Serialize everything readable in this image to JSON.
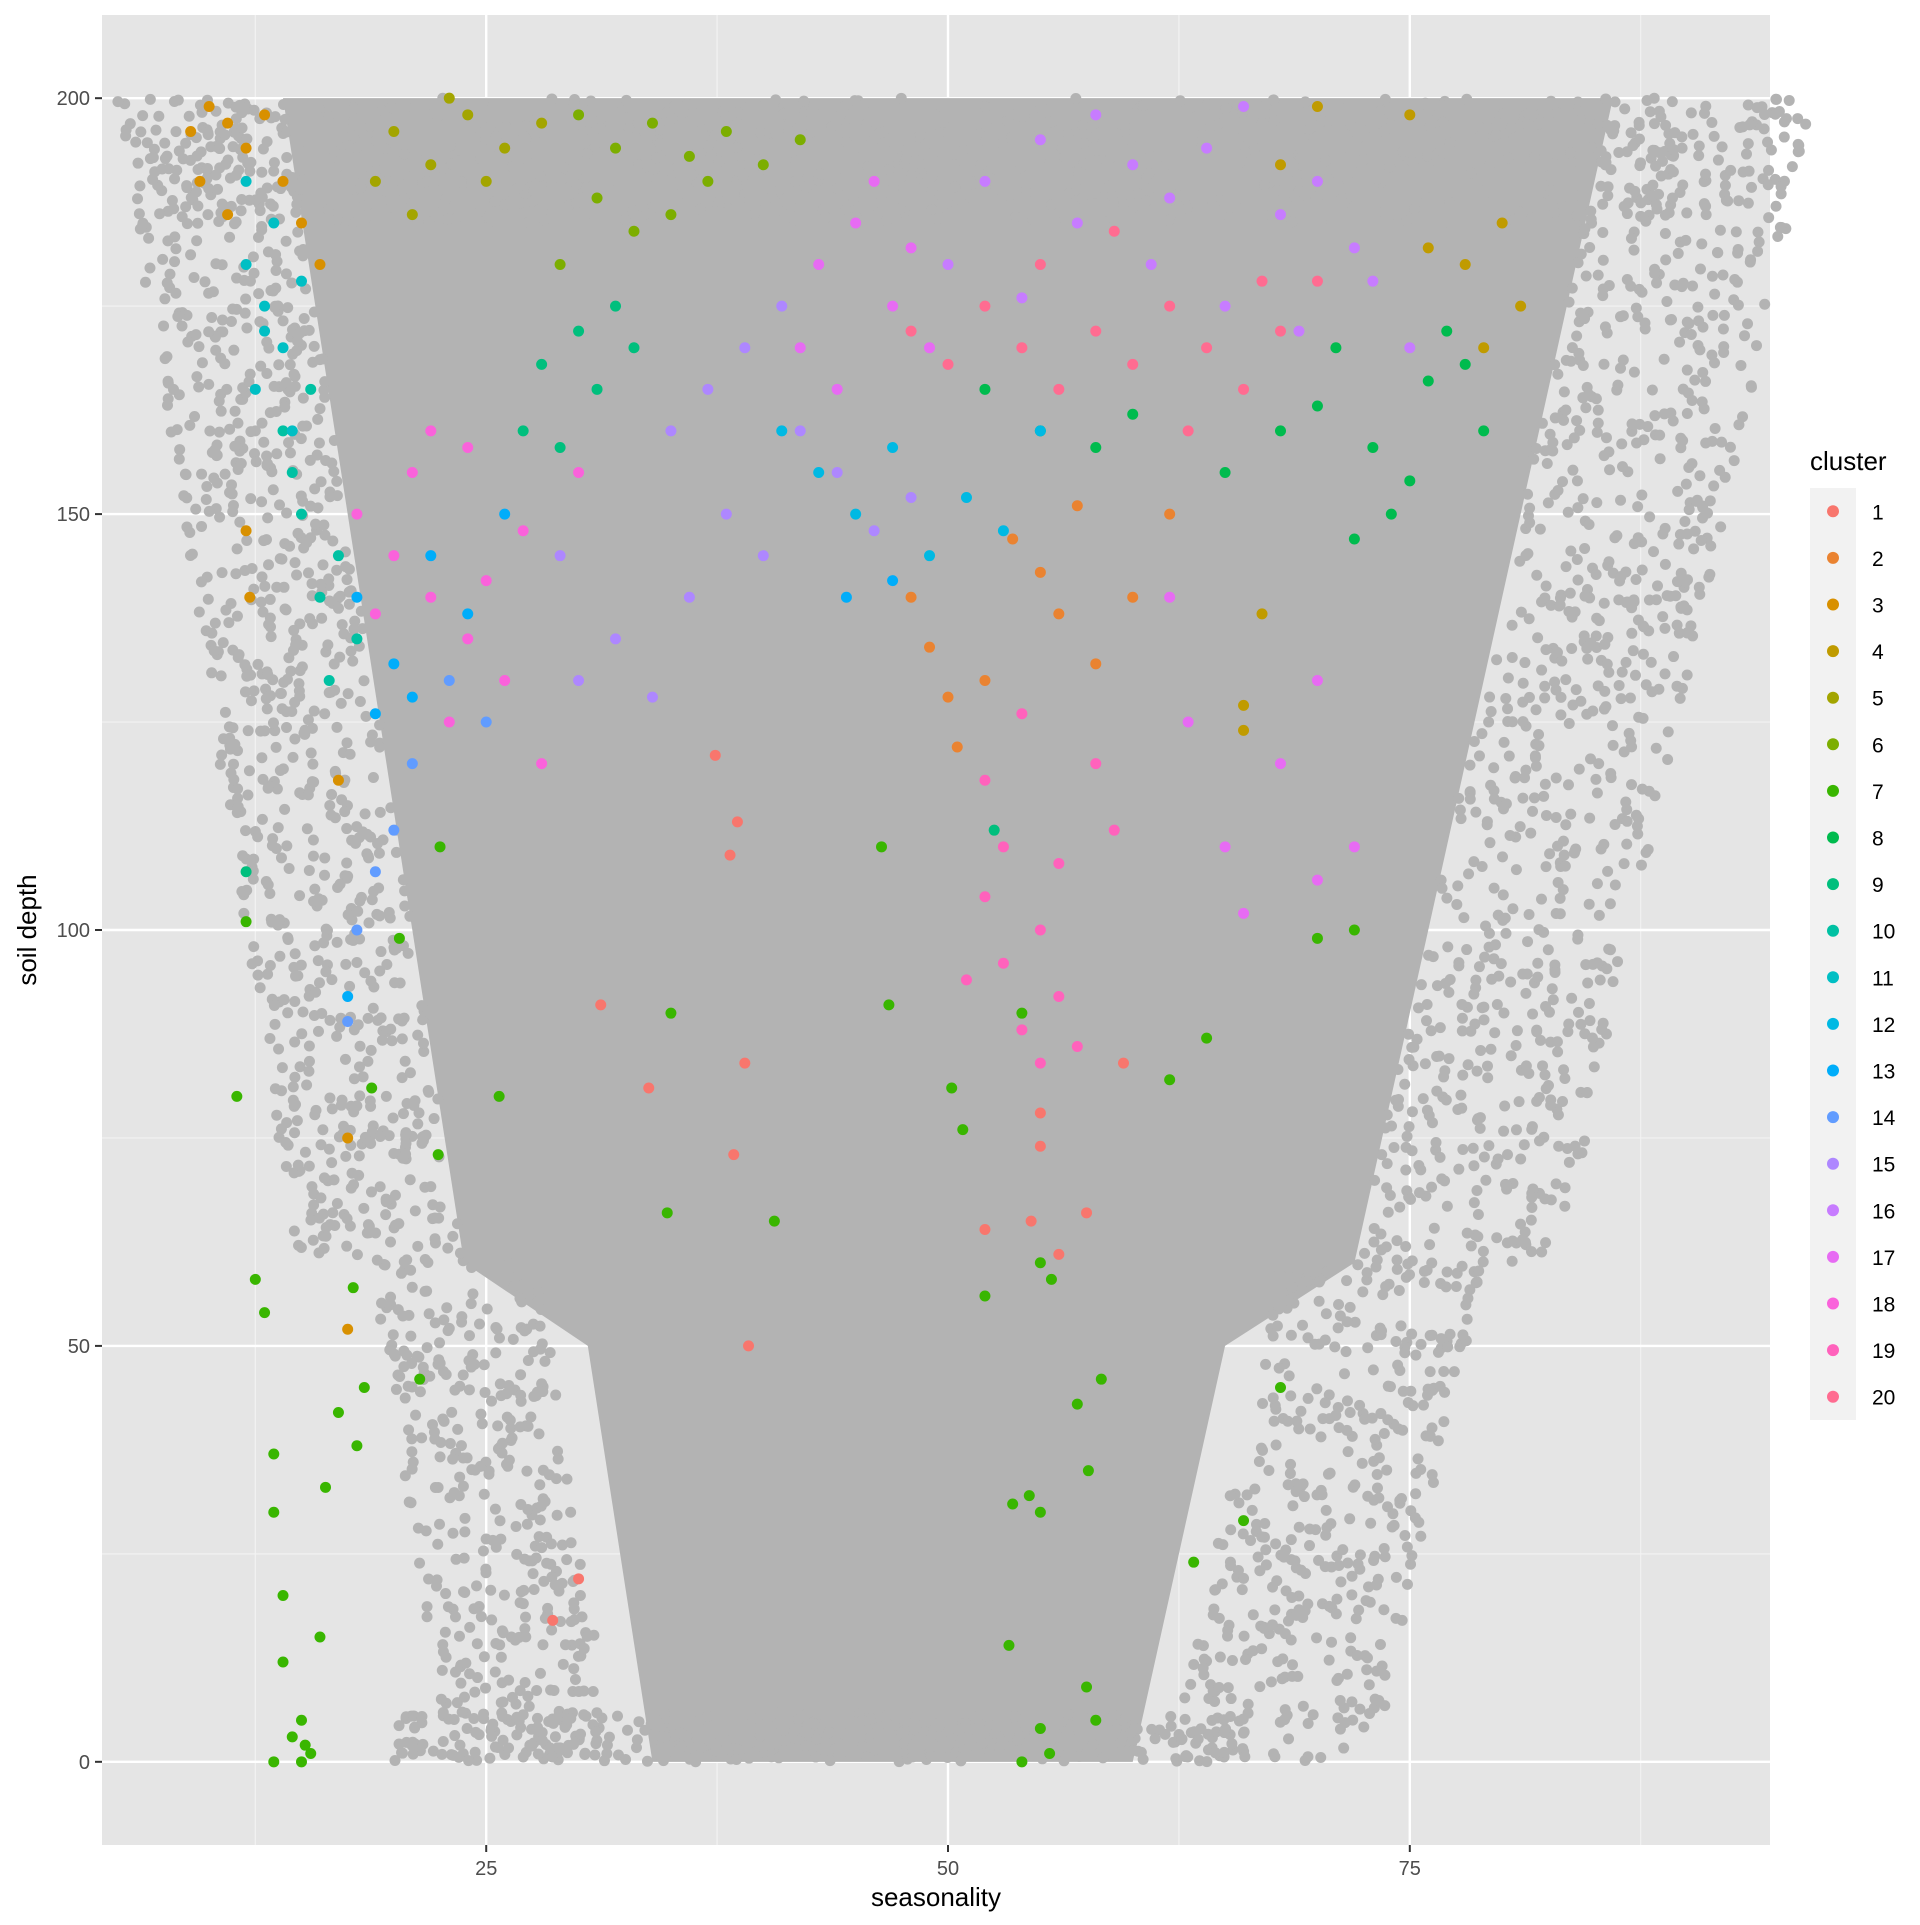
{
  "chart_data": {
    "type": "scatter",
    "title": "",
    "xlabel": "seasonality",
    "ylabel": "soil depth",
    "xlim": [
      4.2,
      94.5
    ],
    "ylim": [
      -10,
      210
    ],
    "x_ticks": [
      25,
      50,
      75
    ],
    "x_minor_ticks": [
      12.5,
      37.5,
      62.5,
      87.5
    ],
    "y_ticks": [
      0,
      50,
      100,
      150,
      200
    ],
    "y_minor_ticks": [
      25,
      75,
      125,
      175
    ],
    "grid": true,
    "panel_background": "#e5e5e5",
    "background_points": {
      "color": "#b3b3b3",
      "description_of_shape": "dense gray cloud, wide at top (x 8-90 at depth 200) narrowing to x 11-72 at depth 0"
    },
    "legend": {
      "title": "cluster",
      "position": "right",
      "entries": [
        "1",
        "2",
        "3",
        "4",
        "5",
        "6",
        "7",
        "8",
        "9",
        "10",
        "11",
        "12",
        "13",
        "14",
        "15",
        "16",
        "17",
        "18",
        "19",
        "20"
      ]
    },
    "series": [
      {
        "name": "1",
        "color": "#F8766D",
        "points": [
          [
            31.2,
            91
          ],
          [
            33.8,
            81
          ],
          [
            38.6,
            113
          ],
          [
            39,
            84
          ],
          [
            38.2,
            109
          ],
          [
            38.4,
            73
          ],
          [
            39.2,
            50
          ],
          [
            37.4,
            121
          ],
          [
            30,
            22
          ],
          [
            28.6,
            17
          ],
          [
            52,
            64
          ],
          [
            54.5,
            65
          ],
          [
            56,
            61
          ],
          [
            57.5,
            66
          ],
          [
            59.5,
            84
          ],
          [
            55,
            78
          ],
          [
            55,
            74
          ]
        ]
      },
      {
        "name": "2",
        "color": "#EA8331",
        "points": [
          [
            50,
            128
          ],
          [
            48,
            140
          ],
          [
            52,
            130
          ],
          [
            55,
            143
          ],
          [
            56,
            138
          ],
          [
            58,
            132
          ],
          [
            50.5,
            122
          ],
          [
            49,
            134
          ],
          [
            53.5,
            147
          ],
          [
            57,
            151
          ],
          [
            60,
            140
          ],
          [
            62,
            150
          ]
        ]
      },
      {
        "name": "3",
        "color": "#D89000",
        "points": [
          [
            9,
            196
          ],
          [
            10,
            199
          ],
          [
            11,
            197
          ],
          [
            12,
            194
          ],
          [
            13,
            198
          ],
          [
            9.5,
            190
          ],
          [
            11,
            186
          ],
          [
            14,
            190
          ],
          [
            17,
            118
          ],
          [
            17.5,
            75
          ],
          [
            17.5,
            52
          ],
          [
            12.2,
            140
          ],
          [
            12,
            148
          ],
          [
            15,
            185
          ],
          [
            16,
            180
          ]
        ]
      },
      {
        "name": "4",
        "color": "#C09B00",
        "points": [
          [
            70,
            199
          ],
          [
            75,
            198
          ],
          [
            78,
            180
          ],
          [
            80,
            185
          ],
          [
            81,
            175
          ],
          [
            76,
            182
          ],
          [
            79,
            170
          ],
          [
            66,
            124
          ],
          [
            66,
            127
          ],
          [
            67,
            138
          ],
          [
            68,
            192
          ]
        ]
      },
      {
        "name": "5",
        "color": "#A3A500",
        "points": [
          [
            20,
            196
          ],
          [
            22,
            192
          ],
          [
            24,
            198
          ],
          [
            26,
            194
          ],
          [
            28,
            197
          ],
          [
            19,
            190
          ],
          [
            21,
            186
          ],
          [
            23,
            200
          ],
          [
            25,
            190
          ]
        ]
      },
      {
        "name": "6",
        "color": "#7CAE00",
        "points": [
          [
            30,
            198
          ],
          [
            32,
            194
          ],
          [
            34,
            197
          ],
          [
            36,
            193
          ],
          [
            38,
            196
          ],
          [
            40,
            192
          ],
          [
            31,
            188
          ],
          [
            35,
            186
          ],
          [
            37,
            190
          ],
          [
            42,
            195
          ],
          [
            29,
            180
          ],
          [
            33,
            184
          ]
        ]
      },
      {
        "name": "7",
        "color": "#39B600",
        "points": [
          [
            12,
            101
          ],
          [
            11.5,
            80
          ],
          [
            12.5,
            58
          ],
          [
            13,
            54
          ],
          [
            13.5,
            37
          ],
          [
            14,
            20
          ],
          [
            13.5,
            30
          ],
          [
            14,
            12
          ],
          [
            14.5,
            3
          ],
          [
            15,
            5
          ],
          [
            15.2,
            2
          ],
          [
            13.5,
            0
          ],
          [
            15,
            0
          ],
          [
            15.5,
            1
          ],
          [
            16,
            15
          ],
          [
            16.3,
            33
          ],
          [
            17,
            42
          ],
          [
            18,
            38
          ],
          [
            17.8,
            57
          ],
          [
            18.4,
            45
          ],
          [
            18.8,
            81
          ],
          [
            20.3,
            99
          ],
          [
            22.4,
            73
          ],
          [
            25.7,
            80
          ],
          [
            34.8,
            66
          ],
          [
            35,
            90
          ],
          [
            40.6,
            65
          ],
          [
            46.8,
            91
          ],
          [
            50.2,
            81
          ],
          [
            50.8,
            76
          ],
          [
            52,
            56
          ],
          [
            54,
            90
          ],
          [
            55.6,
            58
          ],
          [
            55,
            60
          ],
          [
            54.4,
            32
          ],
          [
            55,
            30
          ],
          [
            53.5,
            31
          ],
          [
            53.3,
            14
          ],
          [
            54,
            0
          ],
          [
            55,
            4
          ],
          [
            55.5,
            1
          ],
          [
            57,
            43
          ],
          [
            57.6,
            35
          ],
          [
            57.5,
            9
          ],
          [
            58,
            5
          ],
          [
            58.3,
            46
          ],
          [
            64,
            87
          ],
          [
            66,
            29
          ],
          [
            68,
            45
          ],
          [
            70,
            99
          ],
          [
            72,
            100
          ],
          [
            63.3,
            24
          ],
          [
            62,
            82
          ],
          [
            21.4,
            46
          ],
          [
            22.5,
            110
          ],
          [
            46.4,
            110
          ]
        ]
      },
      {
        "name": "8",
        "color": "#00BB4E",
        "points": [
          [
            70,
            163
          ],
          [
            73,
            158
          ],
          [
            75,
            154
          ],
          [
            76,
            166
          ],
          [
            77,
            172
          ],
          [
            78,
            168
          ],
          [
            79,
            160
          ],
          [
            74,
            150
          ],
          [
            72,
            147
          ],
          [
            71,
            170
          ],
          [
            68,
            160
          ],
          [
            65,
            155
          ],
          [
            60,
            162
          ],
          [
            58,
            158
          ],
          [
            55,
            160
          ],
          [
            52,
            165
          ]
        ]
      },
      {
        "name": "9",
        "color": "#00BF7D",
        "points": [
          [
            28,
            168
          ],
          [
            30,
            172
          ],
          [
            31,
            165
          ],
          [
            27,
            160
          ],
          [
            32,
            175
          ],
          [
            29,
            158
          ],
          [
            33,
            170
          ],
          [
            12,
            107
          ],
          [
            52.5,
            112
          ]
        ]
      },
      {
        "name": "10",
        "color": "#00C1A3",
        "points": [
          [
            14,
            160
          ],
          [
            15,
            150
          ],
          [
            16,
            140
          ],
          [
            17,
            145
          ],
          [
            14.5,
            155
          ],
          [
            18,
            135
          ],
          [
            15.5,
            165
          ],
          [
            16.5,
            130
          ]
        ]
      },
      {
        "name": "11",
        "color": "#00BFC4",
        "points": [
          [
            12,
            180
          ],
          [
            13,
            175
          ],
          [
            14,
            170
          ],
          [
            12.5,
            165
          ],
          [
            13.5,
            185
          ],
          [
            14.5,
            160
          ],
          [
            12,
            190
          ],
          [
            15,
            178
          ],
          [
            13,
            172
          ]
        ]
      },
      {
        "name": "12",
        "color": "#00B9E3",
        "points": [
          [
            41,
            160
          ],
          [
            43,
            155
          ],
          [
            45,
            150
          ],
          [
            47,
            158
          ],
          [
            49,
            145
          ],
          [
            51,
            152
          ],
          [
            53,
            148
          ],
          [
            55,
            160
          ]
        ]
      },
      {
        "name": "13",
        "color": "#00ADFA",
        "points": [
          [
            18,
            140
          ],
          [
            20,
            132
          ],
          [
            22,
            145
          ],
          [
            24,
            138
          ],
          [
            26,
            150
          ],
          [
            19,
            126
          ],
          [
            21,
            128
          ],
          [
            17.5,
            92
          ],
          [
            44.5,
            140
          ],
          [
            47,
            142
          ]
        ]
      },
      {
        "name": "14",
        "color": "#619CFF",
        "points": [
          [
            17.5,
            89
          ],
          [
            19,
            107
          ],
          [
            21,
            120
          ],
          [
            18,
            100
          ],
          [
            23,
            130
          ],
          [
            25,
            125
          ],
          [
            20,
            112
          ]
        ]
      },
      {
        "name": "15",
        "color": "#AE87FF",
        "points": [
          [
            30,
            130
          ],
          [
            32,
            135
          ],
          [
            34,
            128
          ],
          [
            36,
            140
          ],
          [
            38,
            150
          ],
          [
            40,
            145
          ],
          [
            42,
            160
          ],
          [
            44,
            155
          ],
          [
            46,
            148
          ],
          [
            48,
            152
          ],
          [
            35,
            160
          ],
          [
            37,
            165
          ],
          [
            39,
            170
          ],
          [
            41,
            175
          ],
          [
            29,
            145
          ]
        ]
      },
      {
        "name": "16",
        "color": "#C77CFF",
        "points": [
          [
            52,
            190
          ],
          [
            55,
            195
          ],
          [
            58,
            198
          ],
          [
            60,
            192
          ],
          [
            62,
            188
          ],
          [
            64,
            194
          ],
          [
            66,
            199
          ],
          [
            68,
            186
          ],
          [
            70,
            190
          ],
          [
            72,
            182
          ],
          [
            57,
            185
          ],
          [
            61,
            180
          ],
          [
            65,
            175
          ],
          [
            69,
            172
          ],
          [
            73,
            178
          ],
          [
            75,
            170
          ],
          [
            50,
            180
          ],
          [
            54,
            176
          ]
        ]
      },
      {
        "name": "17",
        "color": "#E76BF3",
        "points": [
          [
            43,
            180
          ],
          [
            45,
            185
          ],
          [
            47,
            175
          ],
          [
            49,
            170
          ],
          [
            44,
            165
          ],
          [
            46,
            190
          ],
          [
            48,
            182
          ],
          [
            42,
            170
          ],
          [
            66,
            102
          ],
          [
            65,
            110
          ],
          [
            68,
            120
          ],
          [
            70,
            130
          ],
          [
            62,
            140
          ],
          [
            63,
            125
          ],
          [
            72,
            110
          ],
          [
            70,
            106
          ]
        ]
      },
      {
        "name": "18",
        "color": "#FA62DB",
        "points": [
          [
            18,
            150
          ],
          [
            20,
            145
          ],
          [
            22,
            140
          ],
          [
            24,
            135
          ],
          [
            26,
            130
          ],
          [
            21,
            155
          ],
          [
            23,
            125
          ],
          [
            25,
            142
          ],
          [
            19,
            138
          ],
          [
            27,
            148
          ],
          [
            28,
            120
          ],
          [
            22,
            160
          ],
          [
            24,
            158
          ],
          [
            30,
            155
          ]
        ]
      },
      {
        "name": "19",
        "color": "#FF62BC",
        "points": [
          [
            52,
            104
          ],
          [
            53,
            96
          ],
          [
            54,
            88
          ],
          [
            55,
            84
          ],
          [
            56,
            92
          ],
          [
            57,
            86
          ],
          [
            51,
            94
          ],
          [
            53,
            110
          ],
          [
            55,
            100
          ],
          [
            52,
            118
          ],
          [
            54,
            126
          ],
          [
            56,
            108
          ],
          [
            58,
            120
          ],
          [
            59,
            112
          ]
        ]
      },
      {
        "name": "20",
        "color": "#FF6C91",
        "points": [
          [
            48,
            172
          ],
          [
            50,
            168
          ],
          [
            52,
            175
          ],
          [
            54,
            170
          ],
          [
            56,
            165
          ],
          [
            58,
            172
          ],
          [
            60,
            168
          ],
          [
            62,
            175
          ],
          [
            64,
            170
          ],
          [
            66,
            165
          ],
          [
            68,
            172
          ],
          [
            70,
            178
          ],
          [
            55,
            180
          ],
          [
            59,
            184
          ],
          [
            63,
            160
          ],
          [
            67,
            178
          ]
        ]
      }
    ]
  }
}
